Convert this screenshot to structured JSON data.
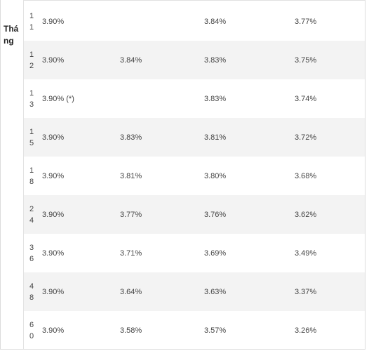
{
  "table": {
    "row_header": "Tháng",
    "rows": [
      {
        "term": "11",
        "c1": "3.90%",
        "c2": "",
        "c3": "3.84%",
        "c4": "3.77%"
      },
      {
        "term": "12",
        "c1": "3.90%",
        "c2": "3.84%",
        "c3": "3.83%",
        "c4": "3.75%"
      },
      {
        "term": "13",
        "c1": "3.90% (*)",
        "c2": "",
        "c3": "3.83%",
        "c4": "3.74%"
      },
      {
        "term": "15",
        "c1": "3.90%",
        "c2": "3.83%",
        "c3": "3.81%",
        "c4": "3.72%"
      },
      {
        "term": "18",
        "c1": "3.90%",
        "c2": "3.81%",
        "c3": "3.80%",
        "c4": "3.68%"
      },
      {
        "term": "24",
        "c1": "3.90%",
        "c2": "3.77%",
        "c3": "3.76%",
        "c4": "3.62%"
      },
      {
        "term": "36",
        "c1": "3.90%",
        "c2": "3.71%",
        "c3": "3.69%",
        "c4": "3.49%"
      },
      {
        "term": "48",
        "c1": "3.90%",
        "c2": "3.64%",
        "c3": "3.63%",
        "c4": "3.37%"
      },
      {
        "term": "60",
        "c1": "3.90%",
        "c2": "3.58%",
        "c3": "3.57%",
        "c4": "3.26%"
      }
    ]
  }
}
